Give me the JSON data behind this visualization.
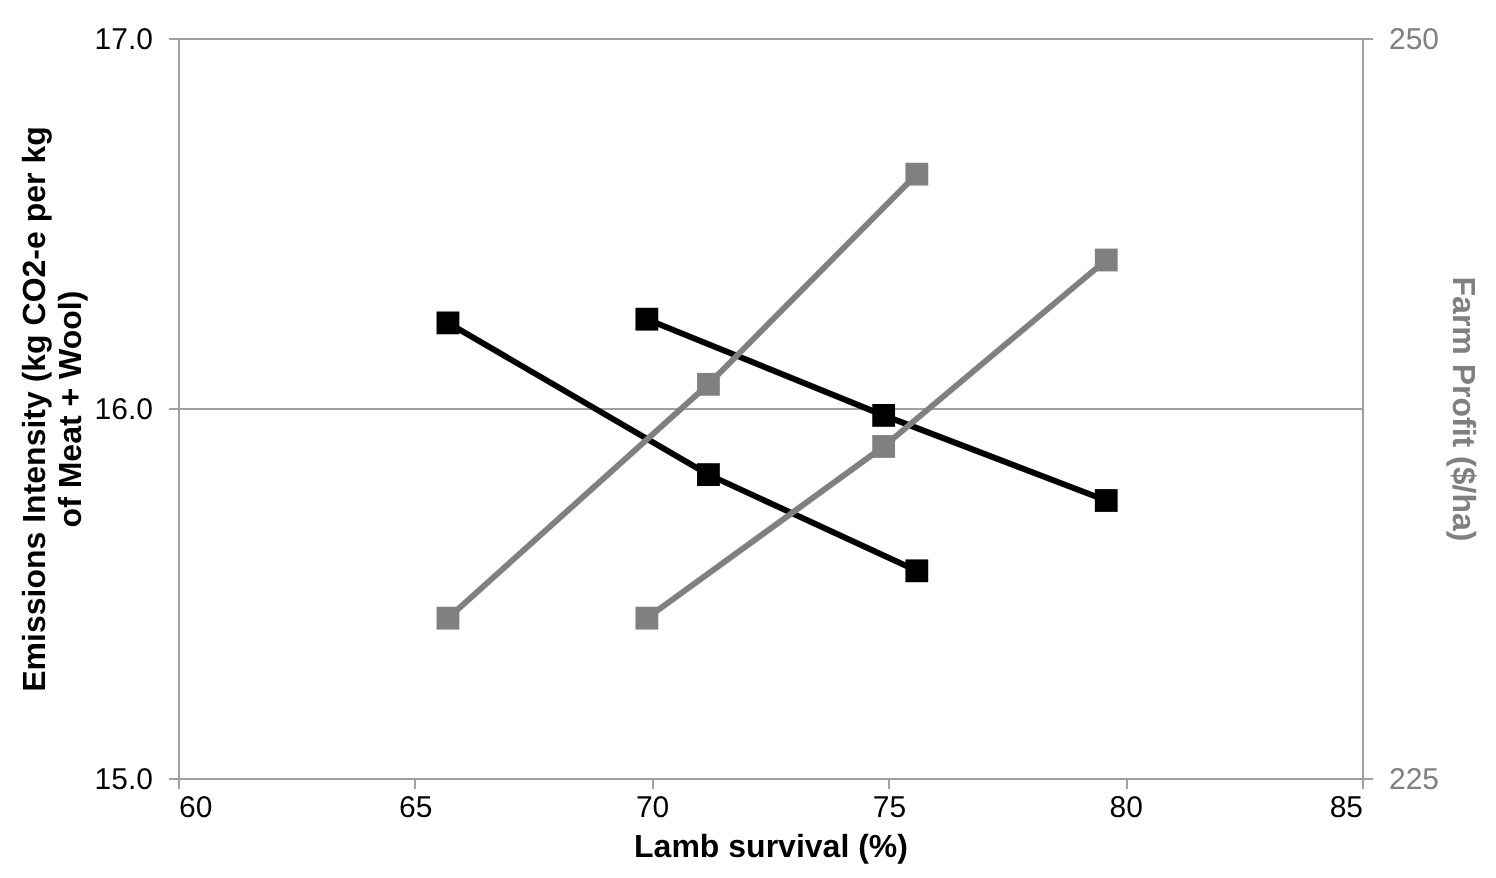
{
  "chart_data": {
    "type": "line",
    "xlabel": "Lamb survival (%)",
    "ylabel": "Emissions Intensity (kg CO2-e per kg of Meat + Wool)",
    "y2label": "Farm Profit ($/ha)",
    "xlim": [
      60,
      85
    ],
    "xticks": [
      60,
      65,
      70,
      75,
      80,
      85
    ],
    "ylim": [
      15,
      17
    ],
    "yticks": [
      {
        "value": 15,
        "label": "15.0"
      },
      {
        "value": 16,
        "label": "16.0"
      },
      {
        "value": 17,
        "label": "17.0"
      }
    ],
    "y2lim": [
      225,
      250
    ],
    "y2ticks": [
      225,
      250
    ],
    "grid": "y",
    "marker": "square",
    "line_style": "solid",
    "series": [
      {
        "color": "#000000",
        "x": [
          65.7,
          71.2,
          75.6
        ],
        "values": [
          16.23,
          15.82,
          15.56
        ]
      },
      {
        "color": "#000000",
        "x": [
          69.9,
          74.9,
          79.6
        ],
        "values": [
          16.24,
          15.98,
          15.75
        ]
      },
      {
        "color": "#808080",
        "axis": "y2",
        "x": [
          65.7,
          71.2,
          75.6
        ],
        "values": [
          230.4,
          238.3,
          245.4
        ]
      },
      {
        "color": "#808080",
        "axis": "y2",
        "x": [
          69.9,
          74.9,
          79.6
        ],
        "values": [
          230.4,
          236.2,
          242.5
        ]
      }
    ]
  }
}
